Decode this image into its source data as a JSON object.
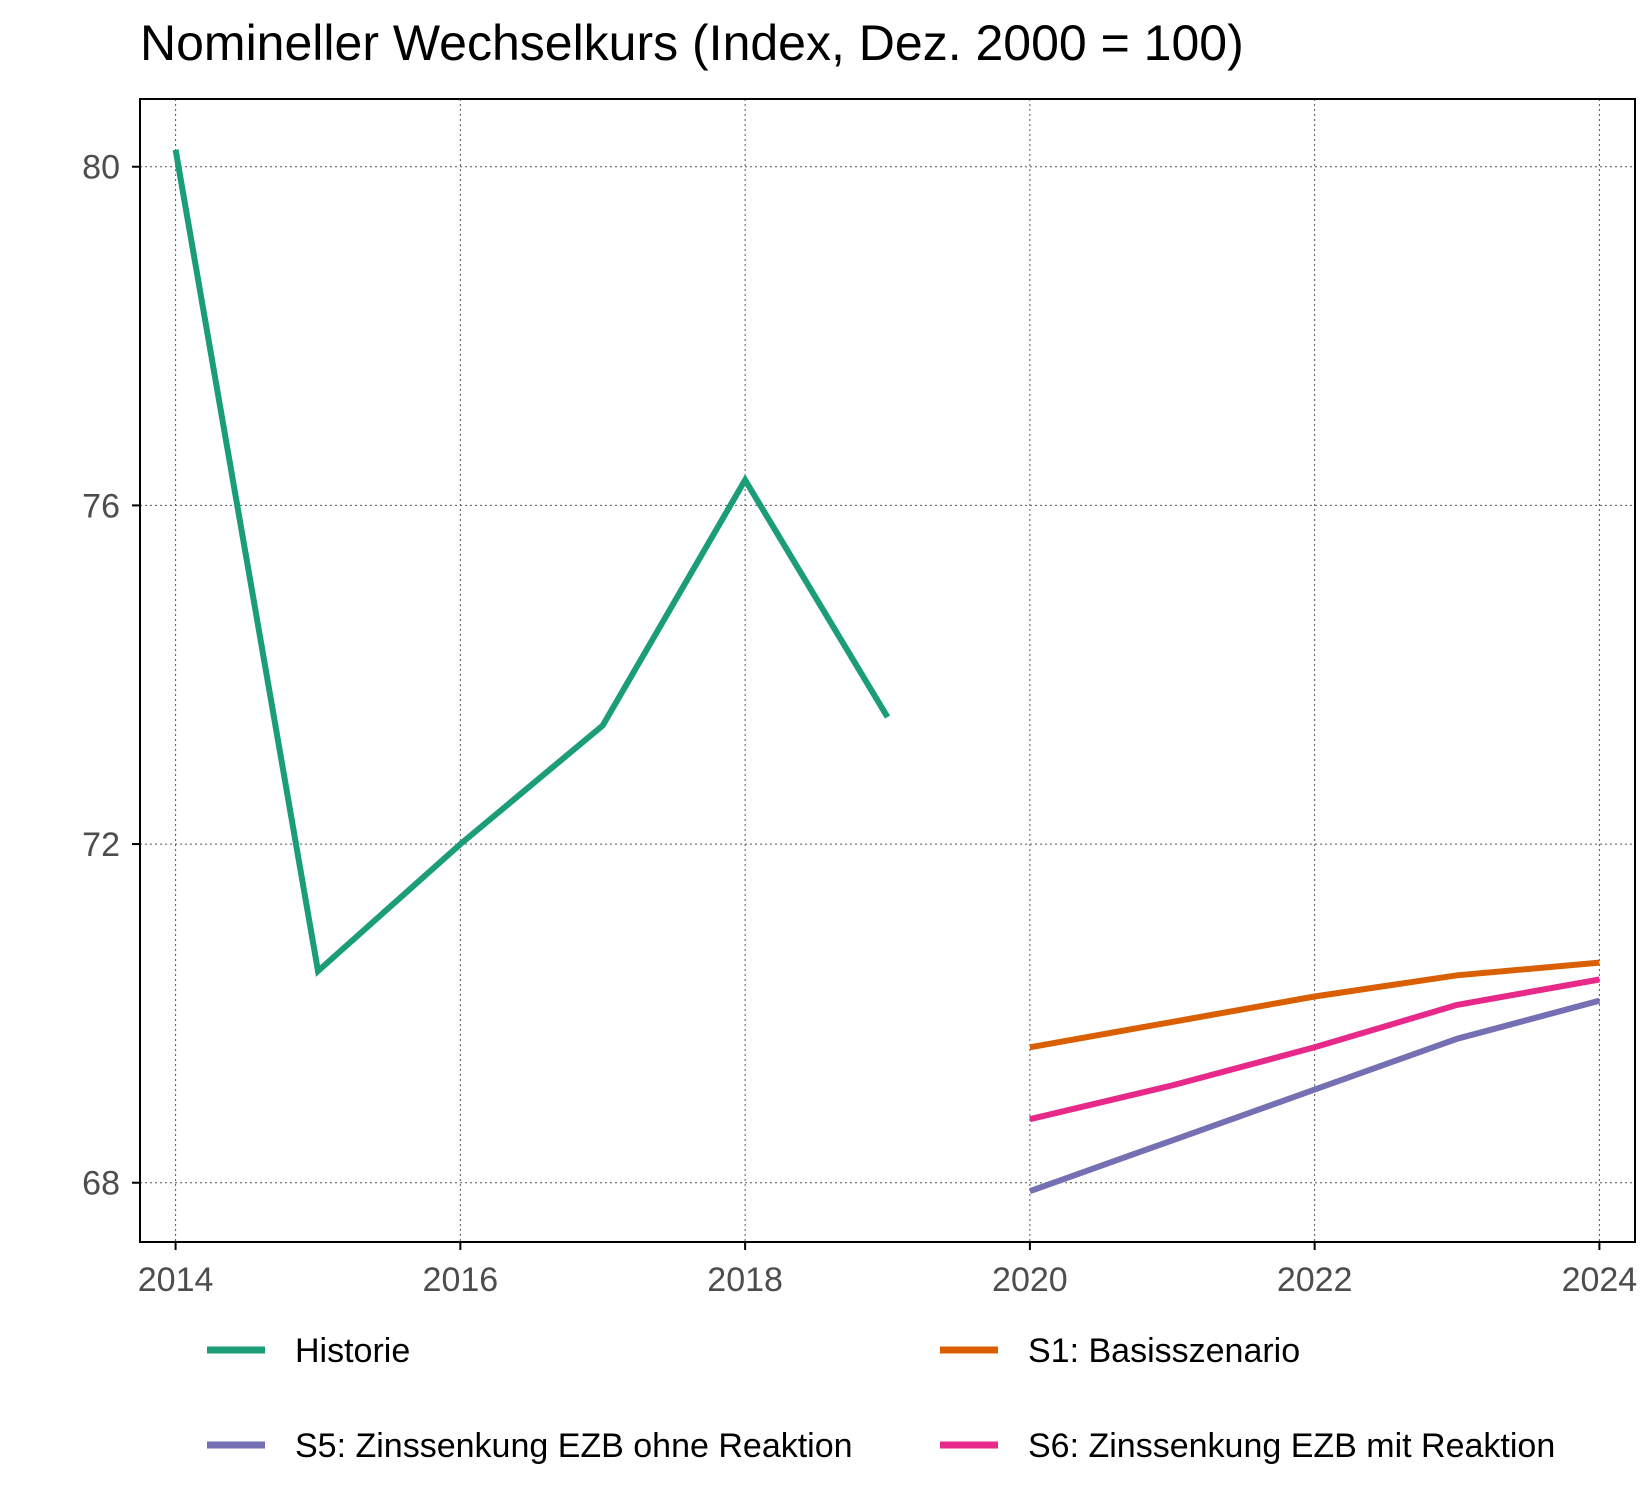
{
  "chart_data": {
    "type": "line",
    "title": "Nomineller Wechselkurs (Index, Dez. 2000 = 100)",
    "xlabel": "",
    "ylabel": "",
    "xlim": [
      2013.75,
      2024.25
    ],
    "ylim": [
      67.3,
      80.8
    ],
    "x_ticks": [
      2014,
      2016,
      2018,
      2020,
      2022,
      2024
    ],
    "y_ticks": [
      68,
      72,
      76,
      80
    ],
    "grid": true,
    "legend_position": "bottom",
    "series": [
      {
        "name": "Historie",
        "color": "#1b9e77",
        "x": [
          2014,
          2015,
          2016,
          2017,
          2018,
          2019
        ],
        "y": [
          80.2,
          70.5,
          72.0,
          73.4,
          76.3,
          73.5
        ]
      },
      {
        "name": "S1: Basisszenario",
        "color": "#d95f02",
        "x": [
          2020,
          2021,
          2022,
          2023,
          2024
        ],
        "y": [
          69.6,
          69.9,
          70.2,
          70.45,
          70.6
        ]
      },
      {
        "name": "S5: Zinssenkung EZB ohne Reaktion",
        "color": "#7570b3",
        "x": [
          2020,
          2021,
          2022,
          2023,
          2024
        ],
        "y": [
          67.9,
          68.5,
          69.1,
          69.7,
          70.15
        ]
      },
      {
        "name": "S6: Zinssenkung EZB mit Reaktion",
        "color": "#e7298a",
        "x": [
          2020,
          2021,
          2022,
          2023,
          2024
        ],
        "y": [
          68.75,
          69.15,
          69.6,
          70.1,
          70.4
        ]
      }
    ]
  }
}
